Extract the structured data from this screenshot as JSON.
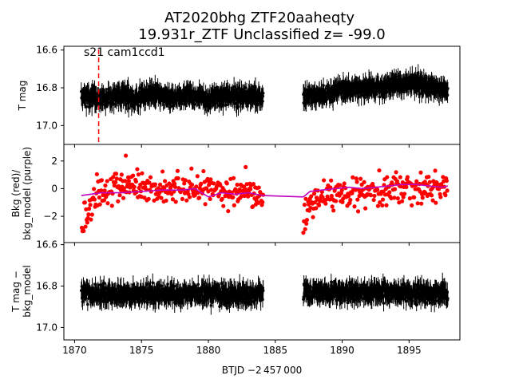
{
  "chart_data": {
    "type": "scatter",
    "title_line1": "AT2020bhg  ZTF20aaheqty",
    "title_line2": "19.931r_ZTF Unclassified z= -99.0",
    "xlabel": "BTJD −2 457 000",
    "xlim": [
      1869.2,
      1898.8
    ],
    "xticks": [
      "1870",
      "1875",
      "1880",
      "1885",
      "1890",
      "1895"
    ],
    "annotation": "s21 cam1ccd1",
    "marker_line_x": 1871.8,
    "marker_line_color": "#ff0000",
    "data_segments": [
      [
        1870.5,
        1884.1
      ],
      [
        1887.1,
        1897.9
      ]
    ],
    "panels": [
      {
        "name": "panel-top",
        "ylabel": [
          "T mag"
        ],
        "ylim": [
          17.1,
          16.58
        ],
        "yticks": [
          16.6,
          16.8,
          17.0
        ],
        "ytick_labels": [
          "16.6",
          "16.8",
          "17.0"
        ],
        "series": [
          {
            "color": "#000000",
            "errorbars": true,
            "segments": [
              {
                "x": [
                  1870.5,
                  1871.5,
                  1872.5,
                  1873.5,
                  1874.5,
                  1875.5,
                  1876.5,
                  1877.5,
                  1878.5,
                  1879.5,
                  1880.5,
                  1881.5,
                  1882.5,
                  1883.5,
                  1884.1
                ],
                "y": [
                  16.84,
                  16.85,
                  16.85,
                  16.84,
                  16.86,
                  16.83,
                  16.84,
                  16.85,
                  16.84,
                  16.85,
                  16.86,
                  16.84,
                  16.85,
                  16.85,
                  16.85
                ]
              },
              {
                "x": [
                  1887.1,
                  1888.0,
                  1889.0,
                  1890.0,
                  1891.0,
                  1892.0,
                  1893.0,
                  1894.0,
                  1895.0,
                  1896.0,
                  1897.0,
                  1897.9
                ],
                "y": [
                  16.84,
                  16.84,
                  16.83,
                  16.81,
                  16.8,
                  16.8,
                  16.8,
                  16.78,
                  16.77,
                  16.79,
                  16.8,
                  16.82
                ]
              }
            ],
            "scatter": 0.05
          }
        ]
      },
      {
        "name": "panel-middle",
        "ylabel": [
          "Bkg (red)/",
          "bkg_model (purple)"
        ],
        "ylim": [
          -3.9,
          3.2
        ],
        "yticks": [
          2,
          0,
          -2
        ],
        "ytick_labels": [
          "2",
          "0",
          "−2"
        ],
        "series": [
          {
            "name": "Bkg",
            "color": "#ff0000",
            "errorbars": false,
            "segments": [
              {
                "x": [
                  1870.5,
                  1871.0,
                  1871.5,
                  1872.5,
                  1873.5,
                  1874.5,
                  1875.5,
                  1876.5,
                  1877.5,
                  1878.5,
                  1879.5,
                  1880.5,
                  1881.5,
                  1882.5,
                  1883.5,
                  1884.1
                ],
                "y": [
                  -3.8,
                  -1.8,
                  -0.5,
                  0.0,
                  0.1,
                  0.2,
                  0.1,
                  0.0,
                  0.2,
                  -0.1,
                  0.1,
                  0.0,
                  -0.2,
                  -0.4,
                  -0.6,
                  -0.8
                ]
              },
              {
                "x": [
                  1887.1,
                  1887.5,
                  1888.0,
                  1889.0,
                  1890.0,
                  1891.0,
                  1892.0,
                  1893.0,
                  1894.0,
                  1895.0,
                  1896.0,
                  1897.0,
                  1897.9
                ],
                "y": [
                  -2.5,
                  -1.3,
                  -0.8,
                  -0.4,
                  -0.2,
                  -0.2,
                  -0.1,
                  -0.1,
                  0.0,
                  0.1,
                  -0.1,
                  0.0,
                  0.2
                ]
              }
            ],
            "scatter": 1.0
          },
          {
            "name": "bkg_model",
            "color": "#bf00bf",
            "errorbars": false,
            "line": true,
            "segments": [
              {
                "x": [
                  1870.5,
                  1872.0,
                  1873.5,
                  1875.0,
                  1876.5,
                  1878.0,
                  1879.0,
                  1880.0,
                  1881.0,
                  1882.0,
                  1883.0,
                  1884.1,
                  1887.1
                ],
                "y": [
                  -0.5,
                  -0.3,
                  -0.3,
                  -0.2,
                  -0.1,
                  -0.1,
                  0.0,
                  -0.6,
                  -0.3,
                  -0.4,
                  -0.3,
                  -0.5,
                  -0.6
                ]
              },
              {
                "x": [
                  1887.1,
                  1887.6,
                  1888.5,
                  1889.5,
                  1890.5,
                  1891.5,
                  1892.5,
                  1893.5,
                  1894.5,
                  1895.5,
                  1896.5,
                  1897.5,
                  1897.9
                ],
                "y": [
                  -0.6,
                  -0.2,
                  -0.1,
                  0.0,
                  0.1,
                  0.0,
                  0.1,
                  0.2,
                  0.3,
                  0.3,
                  0.2,
                  0.1,
                  0.2
                ]
              }
            ]
          }
        ]
      },
      {
        "name": "panel-bottom",
        "ylabel": [
          "T mag −",
          "bkg_model"
        ],
        "ylim": [
          17.06,
          16.59
        ],
        "yticks": [
          16.6,
          16.8,
          17.0
        ],
        "ytick_labels": [
          "16.6",
          "16.8",
          "17.0"
        ],
        "series": [
          {
            "color": "#000000",
            "errorbars": true,
            "segments": [
              {
                "x": [
                  1870.5,
                  1872.0,
                  1874.0,
                  1876.0,
                  1878.0,
                  1880.0,
                  1882.0,
                  1884.1
                ],
                "y": [
                  16.83,
                  16.84,
                  16.84,
                  16.84,
                  16.84,
                  16.84,
                  16.84,
                  16.84
                ]
              },
              {
                "x": [
                  1887.1,
                  1889.0,
                  1891.0,
                  1893.0,
                  1895.0,
                  1897.9
                ],
                "y": [
                  16.83,
                  16.83,
                  16.83,
                  16.83,
                  16.83,
                  16.84
                ]
              }
            ],
            "scatter": 0.05
          }
        ]
      }
    ]
  }
}
